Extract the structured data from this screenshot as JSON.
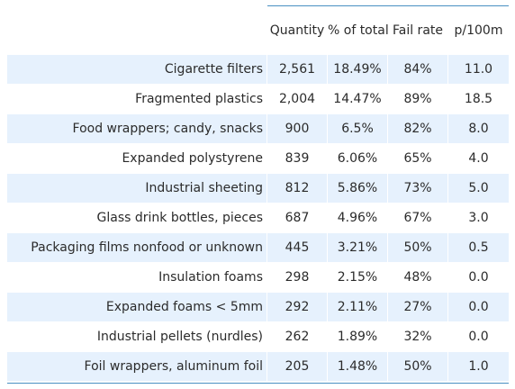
{
  "chart_data": {
    "type": "table",
    "columns": [
      "",
      "Quantity",
      "% of total",
      "Fail rate",
      "p/100m"
    ],
    "rows": [
      {
        "label": "Cigarette filters",
        "quantity": "2,561",
        "pct_total": "18.49%",
        "fail_rate": "84%",
        "p100m": "11.0"
      },
      {
        "label": "Fragmented plastics",
        "quantity": "2,004",
        "pct_total": "14.47%",
        "fail_rate": "89%",
        "p100m": "18.5"
      },
      {
        "label": "Food wrappers; candy, snacks",
        "quantity": "900",
        "pct_total": "6.5%",
        "fail_rate": "82%",
        "p100m": "8.0"
      },
      {
        "label": "Expanded polystyrene",
        "quantity": "839",
        "pct_total": "6.06%",
        "fail_rate": "65%",
        "p100m": "4.0"
      },
      {
        "label": "Industrial sheeting",
        "quantity": "812",
        "pct_total": "5.86%",
        "fail_rate": "73%",
        "p100m": "5.0"
      },
      {
        "label": "Glass drink bottles, pieces",
        "quantity": "687",
        "pct_total": "4.96%",
        "fail_rate": "67%",
        "p100m": "3.0"
      },
      {
        "label": "Packaging films nonfood or unknown",
        "quantity": "445",
        "pct_total": "3.21%",
        "fail_rate": "50%",
        "p100m": "0.5"
      },
      {
        "label": "Insulation foams",
        "quantity": "298",
        "pct_total": "2.15%",
        "fail_rate": "48%",
        "p100m": "0.0"
      },
      {
        "label": "Expanded foams < 5mm",
        "quantity": "292",
        "pct_total": "2.11%",
        "fail_rate": "27%",
        "p100m": "0.0"
      },
      {
        "label": "Industrial pellets (nurdles)",
        "quantity": "262",
        "pct_total": "1.89%",
        "fail_rate": "32%",
        "p100m": "0.0"
      },
      {
        "label": "Foil wrappers, aluminum foil",
        "quantity": "205",
        "pct_total": "1.48%",
        "fail_rate": "50%",
        "p100m": "1.0"
      }
    ],
    "colors": {
      "stripe": "#e6f1fd",
      "rule": "#4a90c2",
      "text": "#2b2b2b"
    }
  }
}
